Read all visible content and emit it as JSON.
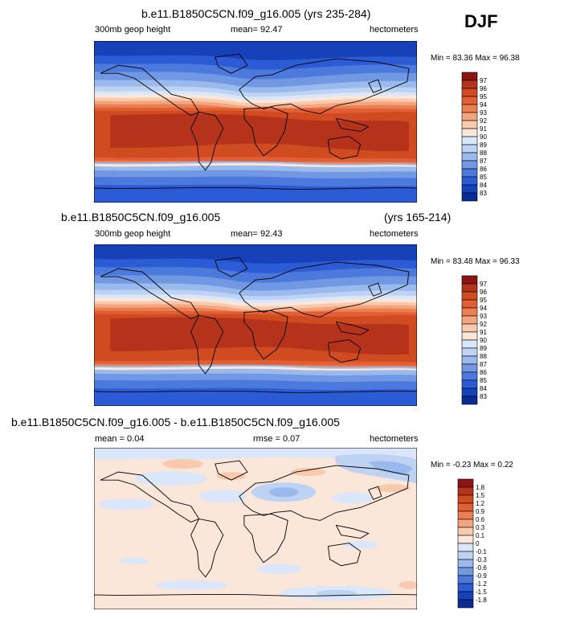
{
  "season": "DJF",
  "colors": {
    "warm": [
      "#fbe6da",
      "#f9c9ad",
      "#f3a57f",
      "#ec7f52",
      "#e25f35",
      "#d14b21",
      "#b5331b",
      "#8e1413"
    ],
    "cool": [
      "#dae6f9",
      "#bed3f3",
      "#9ab9ec",
      "#7098e3",
      "#4c79dc",
      "#2c5bd6",
      "#1741b9",
      "#0a2a96",
      "#051472"
    ],
    "ocean_cool": "#dae6f9"
  },
  "chart_data": [
    {
      "type": "heatmap",
      "title": "b.e11.B1850C5CN.f09_g16.005 (yrs 235-284)",
      "left_label": "300mb geop height",
      "center_label": "mean=  92.47",
      "right_label": "hectometers",
      "minmax": "Min =  83.36 Max =  96.38",
      "min": 83.36,
      "max": 96.38,
      "mean": 92.47,
      "levels": [
        "97",
        "96",
        "95",
        "94",
        "93",
        "92",
        "91",
        "90",
        "89",
        "88",
        "87",
        "86",
        "85",
        "84",
        "83"
      ]
    },
    {
      "type": "heatmap",
      "title": "b.e11.B1850C5CN.f09_g16.005",
      "title_right": "(yrs 165-214)",
      "left_label": "300mb geop height",
      "center_label": "mean=  92.43",
      "right_label": "hectometers",
      "minmax": "Min =  83.48 Max =  96.33",
      "min": 83.48,
      "max": 96.33,
      "mean": 92.43,
      "levels": [
        "97",
        "96",
        "95",
        "94",
        "93",
        "92",
        "91",
        "90",
        "89",
        "88",
        "87",
        "86",
        "85",
        "84",
        "83"
      ]
    },
    {
      "type": "heatmap",
      "title": "b.e11.B1850C5CN.f09_g16.005 - b.e11.B1850C5CN.f09_g16.005",
      "left_label": "mean =  0.04",
      "center_label": "rmse =  0.07",
      "right_label": "hectometers",
      "minmax": "Min = -0.23 Max =  0.22",
      "min": -0.23,
      "max": 0.22,
      "mean": 0.04,
      "rmse": 0.07,
      "levels": [
        "1.8",
        "1.5",
        "1.2",
        "0.9",
        "0.6",
        "0.3",
        "0.1",
        "0",
        "-0.1",
        "-0.3",
        "-0.6",
        "-0.9",
        "-1.2",
        "-1.5",
        "-1.8"
      ]
    }
  ]
}
